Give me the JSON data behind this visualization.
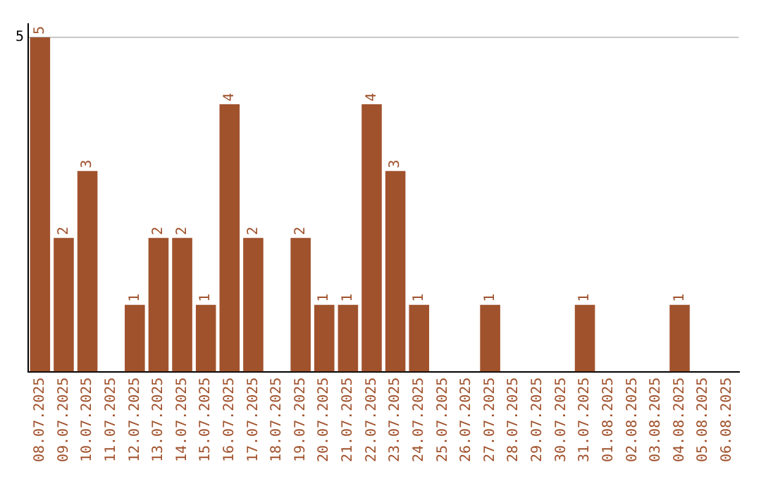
{
  "chart_data": {
    "type": "bar",
    "categories": [
      "08.07.2025",
      "09.07.2025",
      "10.07.2025",
      "11.07.2025",
      "12.07.2025",
      "13.07.2025",
      "14.07.2025",
      "15.07.2025",
      "16.07.2025",
      "17.07.2025",
      "18.07.2025",
      "19.07.2025",
      "20.07.2025",
      "21.07.2025",
      "22.07.2025",
      "23.07.2025",
      "24.07.2025",
      "25.07.2025",
      "26.07.2025",
      "27.07.2025",
      "28.07.2025",
      "29.07.2025",
      "30.07.2025",
      "31.07.2025",
      "01.08.2025",
      "02.08.2025",
      "03.08.2025",
      "04.08.2025",
      "05.08.2025",
      "06.08.2025"
    ],
    "values": [
      5,
      2,
      3,
      0,
      1,
      2,
      2,
      1,
      4,
      2,
      0,
      2,
      1,
      1,
      4,
      3,
      1,
      0,
      0,
      1,
      0,
      0,
      0,
      1,
      0,
      0,
      0,
      1,
      0,
      0
    ],
    "value_labels": [
      "5",
      "2",
      "3",
      null,
      "1",
      "2",
      "2",
      "1",
      "4",
      "2",
      null,
      "2",
      "1",
      "1",
      "4",
      "3",
      "1",
      null,
      null,
      "1",
      null,
      null,
      null,
      "1",
      null,
      null,
      null,
      "1",
      null,
      null
    ],
    "color": "#a0522d",
    "ylim": [
      0,
      5.2
    ],
    "yticks": [
      5
    ],
    "grid": "y",
    "legend": false
  }
}
